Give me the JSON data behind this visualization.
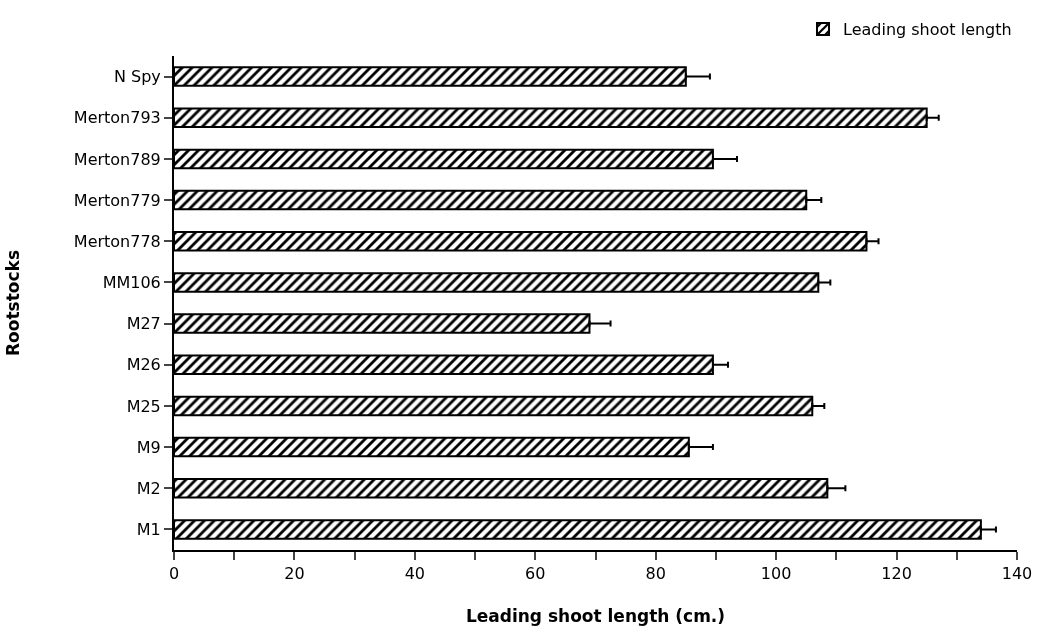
{
  "chart_data": {
    "type": "bar",
    "orientation": "horizontal",
    "categories": [
      "N Spy",
      "Merton793",
      "Merton789",
      "Merton779",
      "Merton778",
      "MM106",
      "M27",
      "M26",
      "M25",
      "M9",
      "M2",
      "M1"
    ],
    "series": [
      {
        "name": "Leading shoot length",
        "color": "#000000",
        "values": [
          85,
          125,
          89.5,
          105,
          115,
          107,
          69,
          89.5,
          106,
          85.5,
          108.5,
          134
        ],
        "errors": [
          4,
          2,
          4,
          2.5,
          2,
          2,
          3.5,
          2.5,
          2,
          4,
          3,
          2.5
        ]
      }
    ],
    "xlabel": "Leading shoot length (cm.)",
    "ylabel": "Rootstocks",
    "xlim": [
      0,
      140
    ],
    "xticks": [
      0,
      {
        "value": 10,
        "label": null
      },
      20,
      {
        "value": 30,
        "label": null
      },
      40,
      {
        "value": 50,
        "label": null
      },
      60,
      {
        "value": 70,
        "label": null
      },
      80,
      {
        "value": 90,
        "label": null
      },
      100,
      {
        "value": 110,
        "label": null
      },
      120,
      {
        "value": 130,
        "label": null
      },
      140
    ],
    "grid": false,
    "legend": "top right"
  }
}
